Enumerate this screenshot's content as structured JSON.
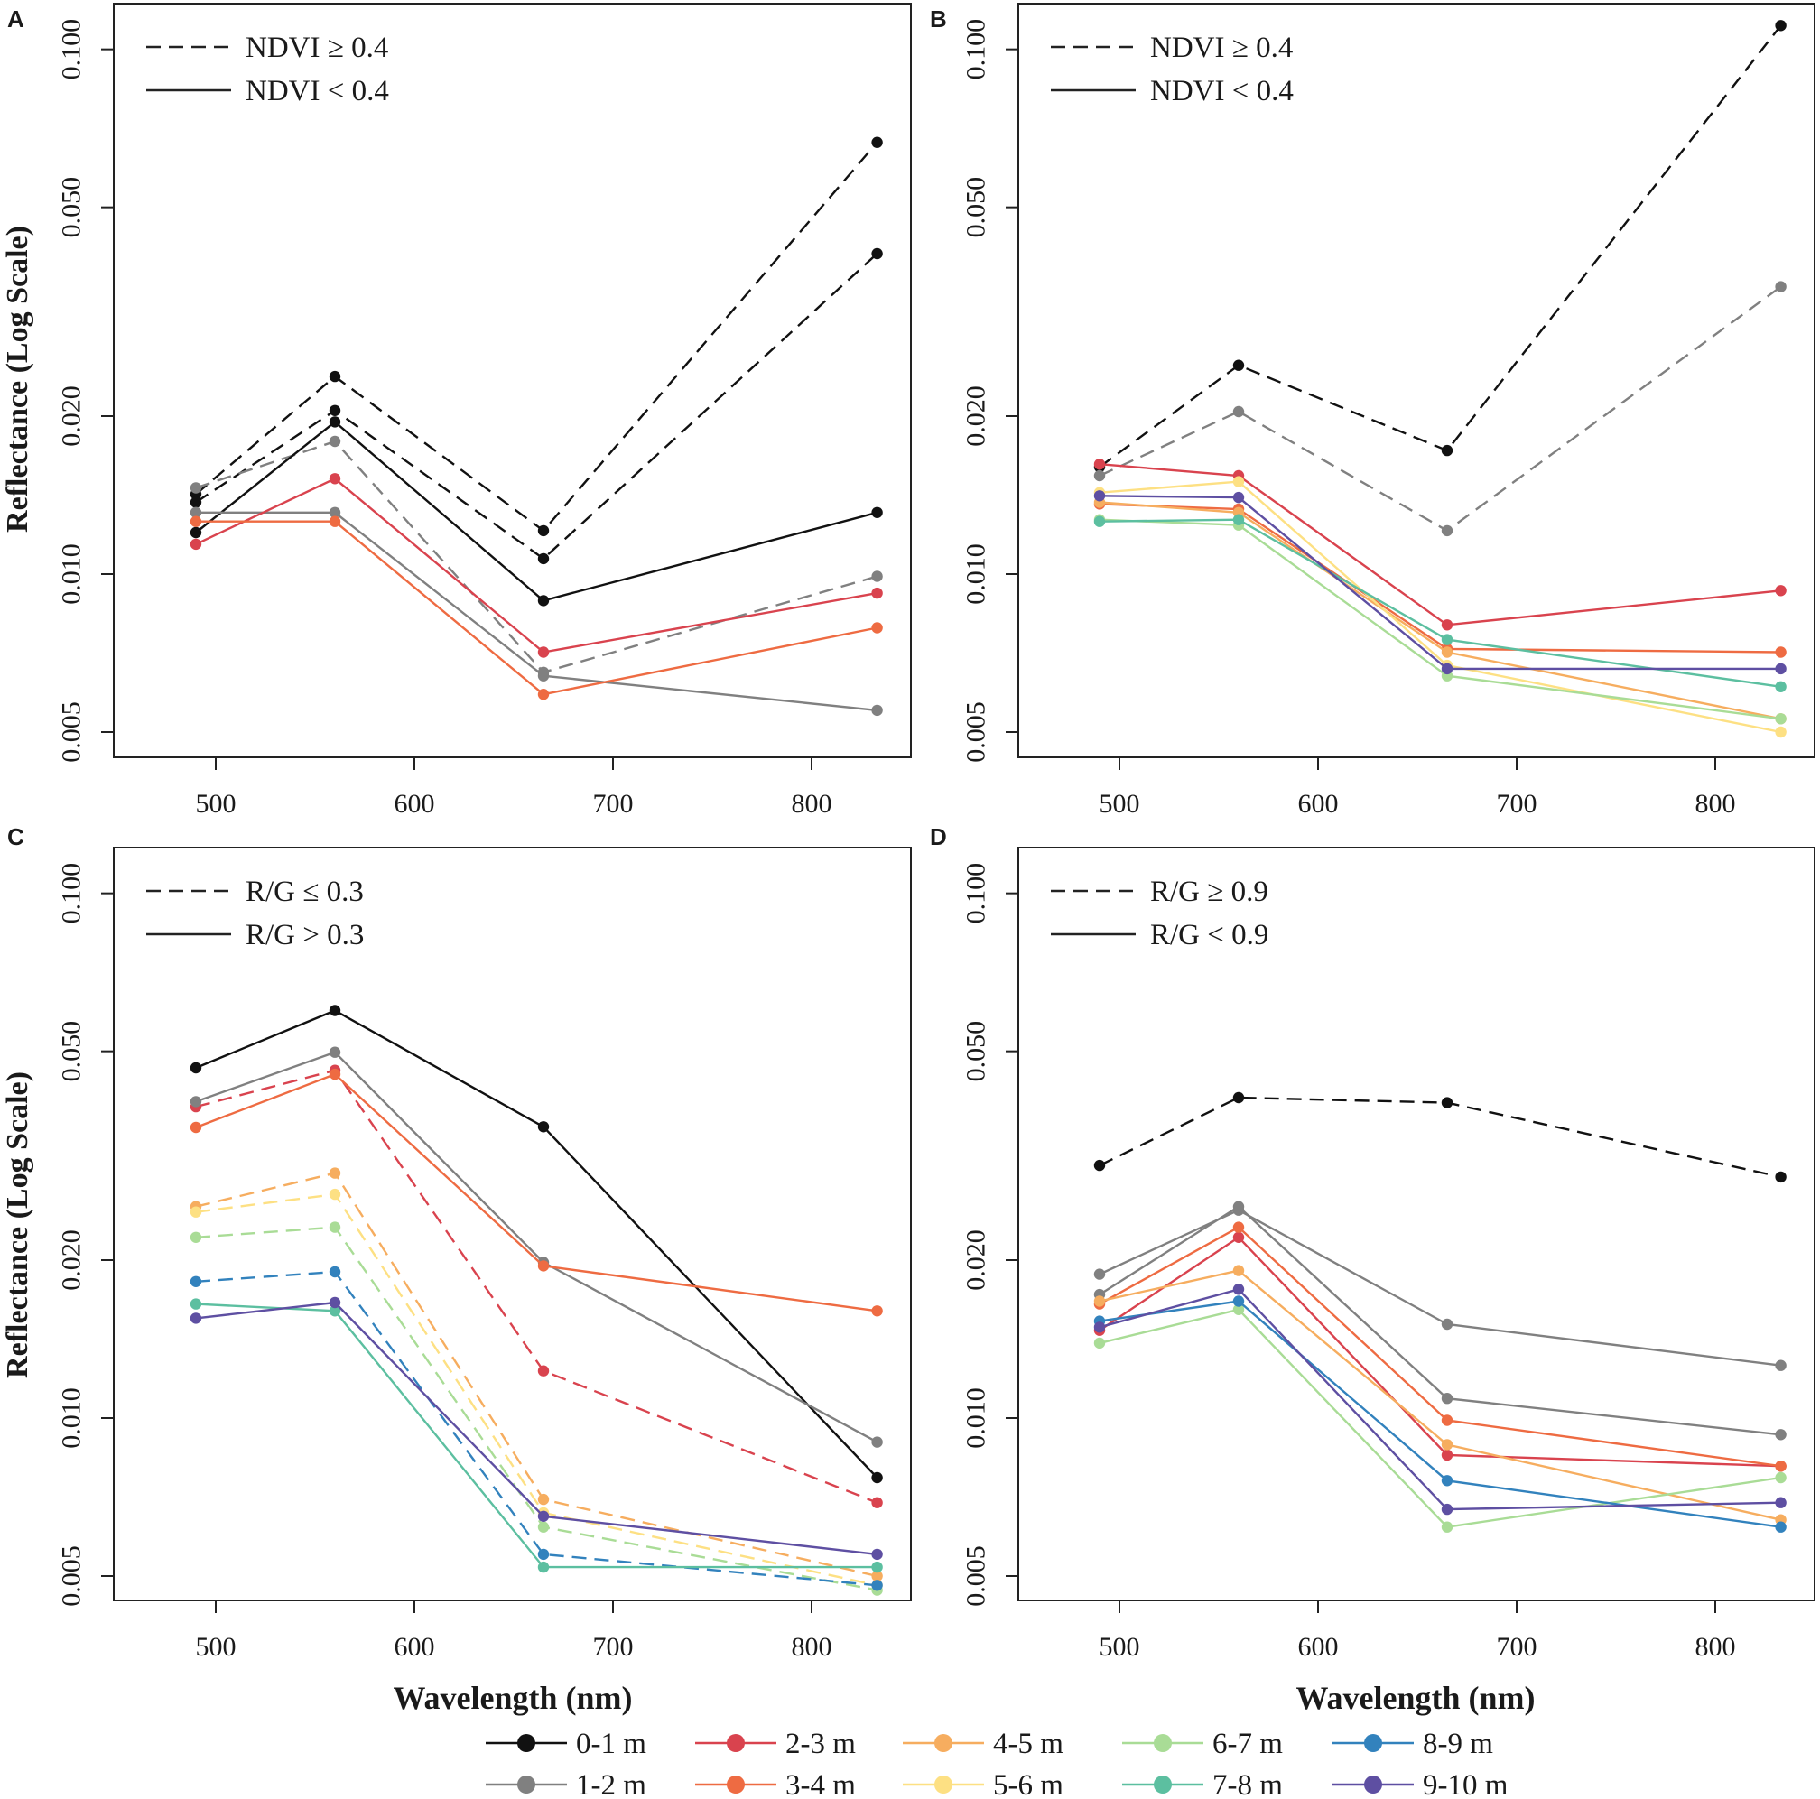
{
  "chart_data": {
    "type": "line",
    "y_scale": "log",
    "xlabel": "Wavelength (nm)",
    "ylabel": "Reflectance (Log Scale)",
    "x_ticks": [
      500,
      600,
      700,
      800
    ],
    "y_ticks": [
      "0.005",
      "0.010",
      "0.020",
      "0.050",
      "0.100"
    ],
    "x": [
      490,
      560,
      665,
      833
    ],
    "depth_colors": {
      "0-1 m": "#111111",
      "1-2 m": "#808080",
      "2-3 m": "#d9434e",
      "3-4 m": "#ee6b42",
      "4-5 m": "#f6ad5f",
      "5-6 m": "#fde083",
      "6-7 m": "#a9dc96",
      "7-8 m": "#5cbfa0",
      "8-9 m": "#3282bd",
      "9-10 m": "#5e4fa2"
    },
    "legend": [
      "0-1 m",
      "1-2 m",
      "2-3 m",
      "3-4 m",
      "4-5 m",
      "5-6 m",
      "6-7 m",
      "7-8 m",
      "8-9 m",
      "9-10 m"
    ],
    "panels": [
      {
        "letter": "A",
        "legend_dashed": "NDVI ≥ 0.4",
        "legend_solid": "NDVI < 0.4",
        "series": [
          {
            "depth": "0-1 m",
            "style": "dashed",
            "values": [
              0.0142,
              0.0238,
              0.0121,
              0.0665
            ]
          },
          {
            "depth": "0-1 m",
            "style": "dashed",
            "values": [
              0.0137,
              0.0205,
              0.0107,
              0.0408
            ]
          },
          {
            "depth": "1-2 m",
            "style": "dashed",
            "values": [
              0.0146,
              0.0179,
              0.0065,
              0.0099
            ]
          },
          {
            "depth": "0-1 m",
            "style": "solid",
            "values": [
              0.012,
              0.0195,
              0.0089,
              0.0131
            ]
          },
          {
            "depth": "1-2 m",
            "style": "solid",
            "values": [
              0.0131,
              0.0131,
              0.0064,
              0.0055
            ]
          },
          {
            "depth": "2-3 m",
            "style": "solid",
            "values": [
              0.0114,
              0.0152,
              0.0071,
              0.0092
            ]
          },
          {
            "depth": "3-4 m",
            "style": "solid",
            "values": [
              0.0126,
              0.0126,
              0.0059,
              0.0079
            ]
          }
        ]
      },
      {
        "letter": "B",
        "legend_dashed": "NDVI ≥ 0.4",
        "legend_solid": "NDVI < 0.4",
        "series": [
          {
            "depth": "0-1 m",
            "style": "dashed",
            "values": [
              0.016,
              0.025,
              0.0172,
              0.111
            ]
          },
          {
            "depth": "1-2 m",
            "style": "dashed",
            "values": [
              0.0154,
              0.0204,
              0.0121,
              0.0353
            ]
          },
          {
            "depth": "2-3 m",
            "style": "solid",
            "values": [
              0.0162,
              0.0154,
              0.008,
              0.0093
            ]
          },
          {
            "depth": "3-4 m",
            "style": "solid",
            "values": [
              0.0136,
              0.0133,
              0.0072,
              0.0071
            ]
          },
          {
            "depth": "4-5 m",
            "style": "solid",
            "values": [
              0.0137,
              0.0131,
              0.0071,
              0.0053
            ]
          },
          {
            "depth": "5-6 m",
            "style": "solid",
            "values": [
              0.0143,
              0.015,
              0.0067,
              0.005
            ]
          },
          {
            "depth": "6-7 m",
            "style": "solid",
            "values": [
              0.0127,
              0.0124,
              0.0064,
              0.0053
            ]
          },
          {
            "depth": "7-8 m",
            "style": "solid",
            "values": [
              0.0126,
              0.0127,
              0.0075,
              0.0061
            ]
          },
          {
            "depth": "9-10 m",
            "style": "solid",
            "values": [
              0.0141,
              0.014,
              0.0066,
              0.0066
            ]
          }
        ]
      },
      {
        "letter": "C",
        "legend_dashed": "R/G ≤ 0.3",
        "legend_solid": "R/G > 0.3",
        "series": [
          {
            "depth": "2-3 m",
            "style": "dashed",
            "values": [
              0.0392,
              0.046,
              0.0123,
              0.0069
            ]
          },
          {
            "depth": "4-5 m",
            "style": "dashed",
            "values": [
              0.0253,
              0.0293,
              0.007,
              0.005
            ]
          },
          {
            "depth": "5-6 m",
            "style": "dashed",
            "values": [
              0.0247,
              0.0267,
              0.0066,
              0.0048
            ]
          },
          {
            "depth": "6-7 m",
            "style": "dashed",
            "values": [
              0.0221,
              0.0231,
              0.0062,
              0.0047
            ]
          },
          {
            "depth": "8-9 m",
            "style": "dashed",
            "values": [
              0.0182,
              0.019,
              0.0055,
              0.0048
            ]
          },
          {
            "depth": "0-1 m",
            "style": "solid",
            "values": [
              0.0465,
              0.0598,
              0.0359,
              0.0077
            ]
          },
          {
            "depth": "1-2 m",
            "style": "solid",
            "values": [
              0.0401,
              0.0498,
              0.0198,
              0.009
            ]
          },
          {
            "depth": "3-4 m",
            "style": "solid",
            "values": [
              0.0358,
              0.0452,
              0.0195,
              0.016
            ]
          },
          {
            "depth": "7-8 m",
            "style": "solid",
            "values": [
              0.0165,
              0.016,
              0.0052,
              0.0052
            ]
          },
          {
            "depth": "9-10 m",
            "style": "solid",
            "values": [
              0.0155,
              0.0166,
              0.0065,
              0.0055
            ]
          }
        ]
      },
      {
        "letter": "D",
        "legend_dashed": "R/G ≥ 0.9",
        "legend_solid": "R/G < 0.9",
        "series": [
          {
            "depth": "0-1 m",
            "style": "dashed",
            "values": [
              0.0303,
              0.0408,
              0.0399,
              0.0288
            ]
          },
          {
            "depth": "1-2 m",
            "style": "solid",
            "values": [
              0.0188,
              0.0249,
              0.0151,
              0.0126
            ]
          },
          {
            "depth": "1-2 m",
            "style": "solid",
            "values": [
              0.0172,
              0.0253,
              0.0109,
              0.0093
            ]
          },
          {
            "depth": "2-3 m",
            "style": "solid",
            "values": [
              0.0147,
              0.0221,
              0.0085,
              0.0081
            ]
          },
          {
            "depth": "3-4 m",
            "style": "solid",
            "values": [
              0.0165,
              0.0231,
              0.0099,
              0.0081
            ]
          },
          {
            "depth": "4-5 m",
            "style": "solid",
            "values": [
              0.0167,
              0.0191,
              0.0089,
              0.0064
            ]
          },
          {
            "depth": "6-7 m",
            "style": "solid",
            "values": [
              0.0139,
              0.0161,
              0.0062,
              0.0077
            ]
          },
          {
            "depth": "8-9 m",
            "style": "solid",
            "values": [
              0.0153,
              0.0167,
              0.0076,
              0.0062
            ]
          },
          {
            "depth": "9-10 m",
            "style": "solid",
            "values": [
              0.0149,
              0.0176,
              0.0067,
              0.0069
            ]
          }
        ]
      }
    ]
  }
}
